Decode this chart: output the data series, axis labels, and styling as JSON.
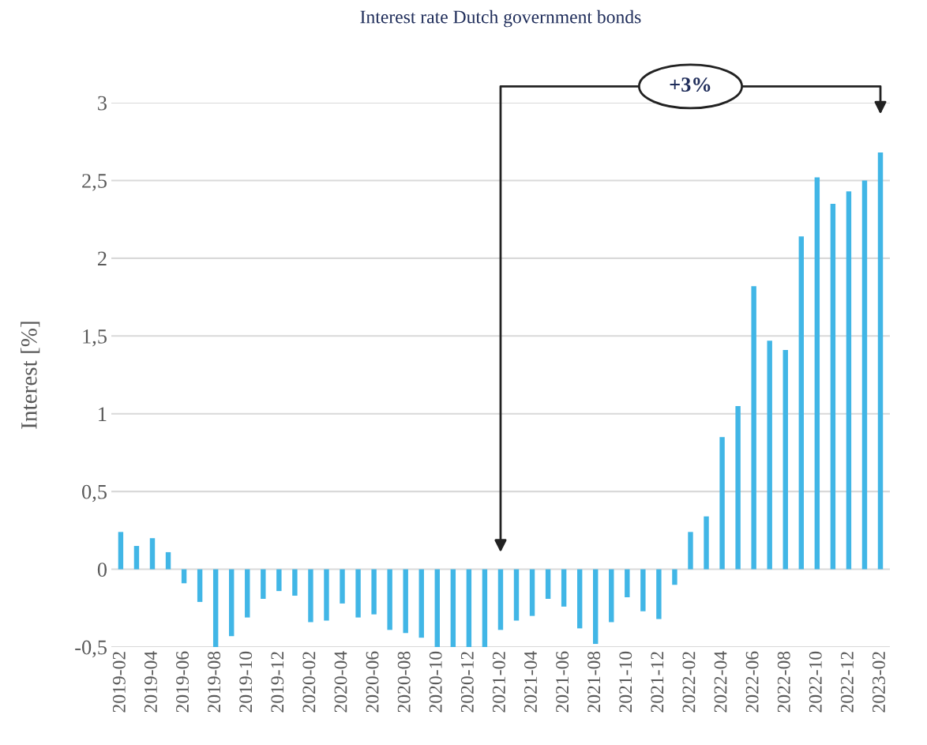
{
  "chart_data": {
    "type": "bar",
    "title": "Interest rate Dutch government bonds",
    "ylabel": "Interest [%]",
    "categories": [
      "2019-02",
      null,
      "2019-04",
      null,
      "2019-06",
      null,
      "2019-08",
      null,
      "2019-10",
      null,
      "2019-12",
      null,
      "2020-02",
      null,
      "2020-04",
      null,
      "2020-06",
      null,
      "2020-08",
      null,
      "2020-10",
      null,
      "2020-12",
      null,
      "2021-02",
      null,
      "2021-04",
      null,
      "2021-06",
      null,
      "2021-08",
      null,
      "2021-10",
      null,
      "2021-12",
      null,
      "2022-02",
      null,
      "2022-04",
      null,
      "2022-06",
      null,
      "2022-08",
      null,
      "2022-10",
      null,
      "2022-12",
      null,
      "2023-02"
    ],
    "values": [
      0.24,
      0.15,
      0.2,
      0.11,
      -0.09,
      -0.21,
      -0.5,
      -0.43,
      -0.31,
      -0.19,
      -0.14,
      -0.17,
      -0.34,
      -0.33,
      -0.22,
      -0.31,
      -0.29,
      -0.39,
      -0.41,
      -0.44,
      -0.5,
      -0.5,
      -0.5,
      -0.5,
      -0.39,
      -0.33,
      -0.3,
      -0.19,
      -0.24,
      -0.38,
      -0.48,
      -0.34,
      -0.18,
      -0.27,
      -0.32,
      -0.1,
      0.24,
      0.34,
      0.85,
      1.05,
      1.82,
      1.47,
      1.41,
      2.14,
      2.52,
      2.35,
      2.43,
      2.5,
      2.68
    ],
    "color": "#41b6e6",
    "ylim": [
      -0.5,
      3
    ],
    "yticks": [
      {
        "value": -0.5,
        "label": "-0,5"
      },
      0,
      {
        "value": 0.5,
        "label": "0,5"
      },
      1,
      {
        "value": 1.5,
        "label": "1,5"
      },
      2,
      {
        "value": 2.5,
        "label": "2,5"
      },
      3
    ],
    "grid": "y",
    "annotations": [
      "+3%"
    ]
  }
}
